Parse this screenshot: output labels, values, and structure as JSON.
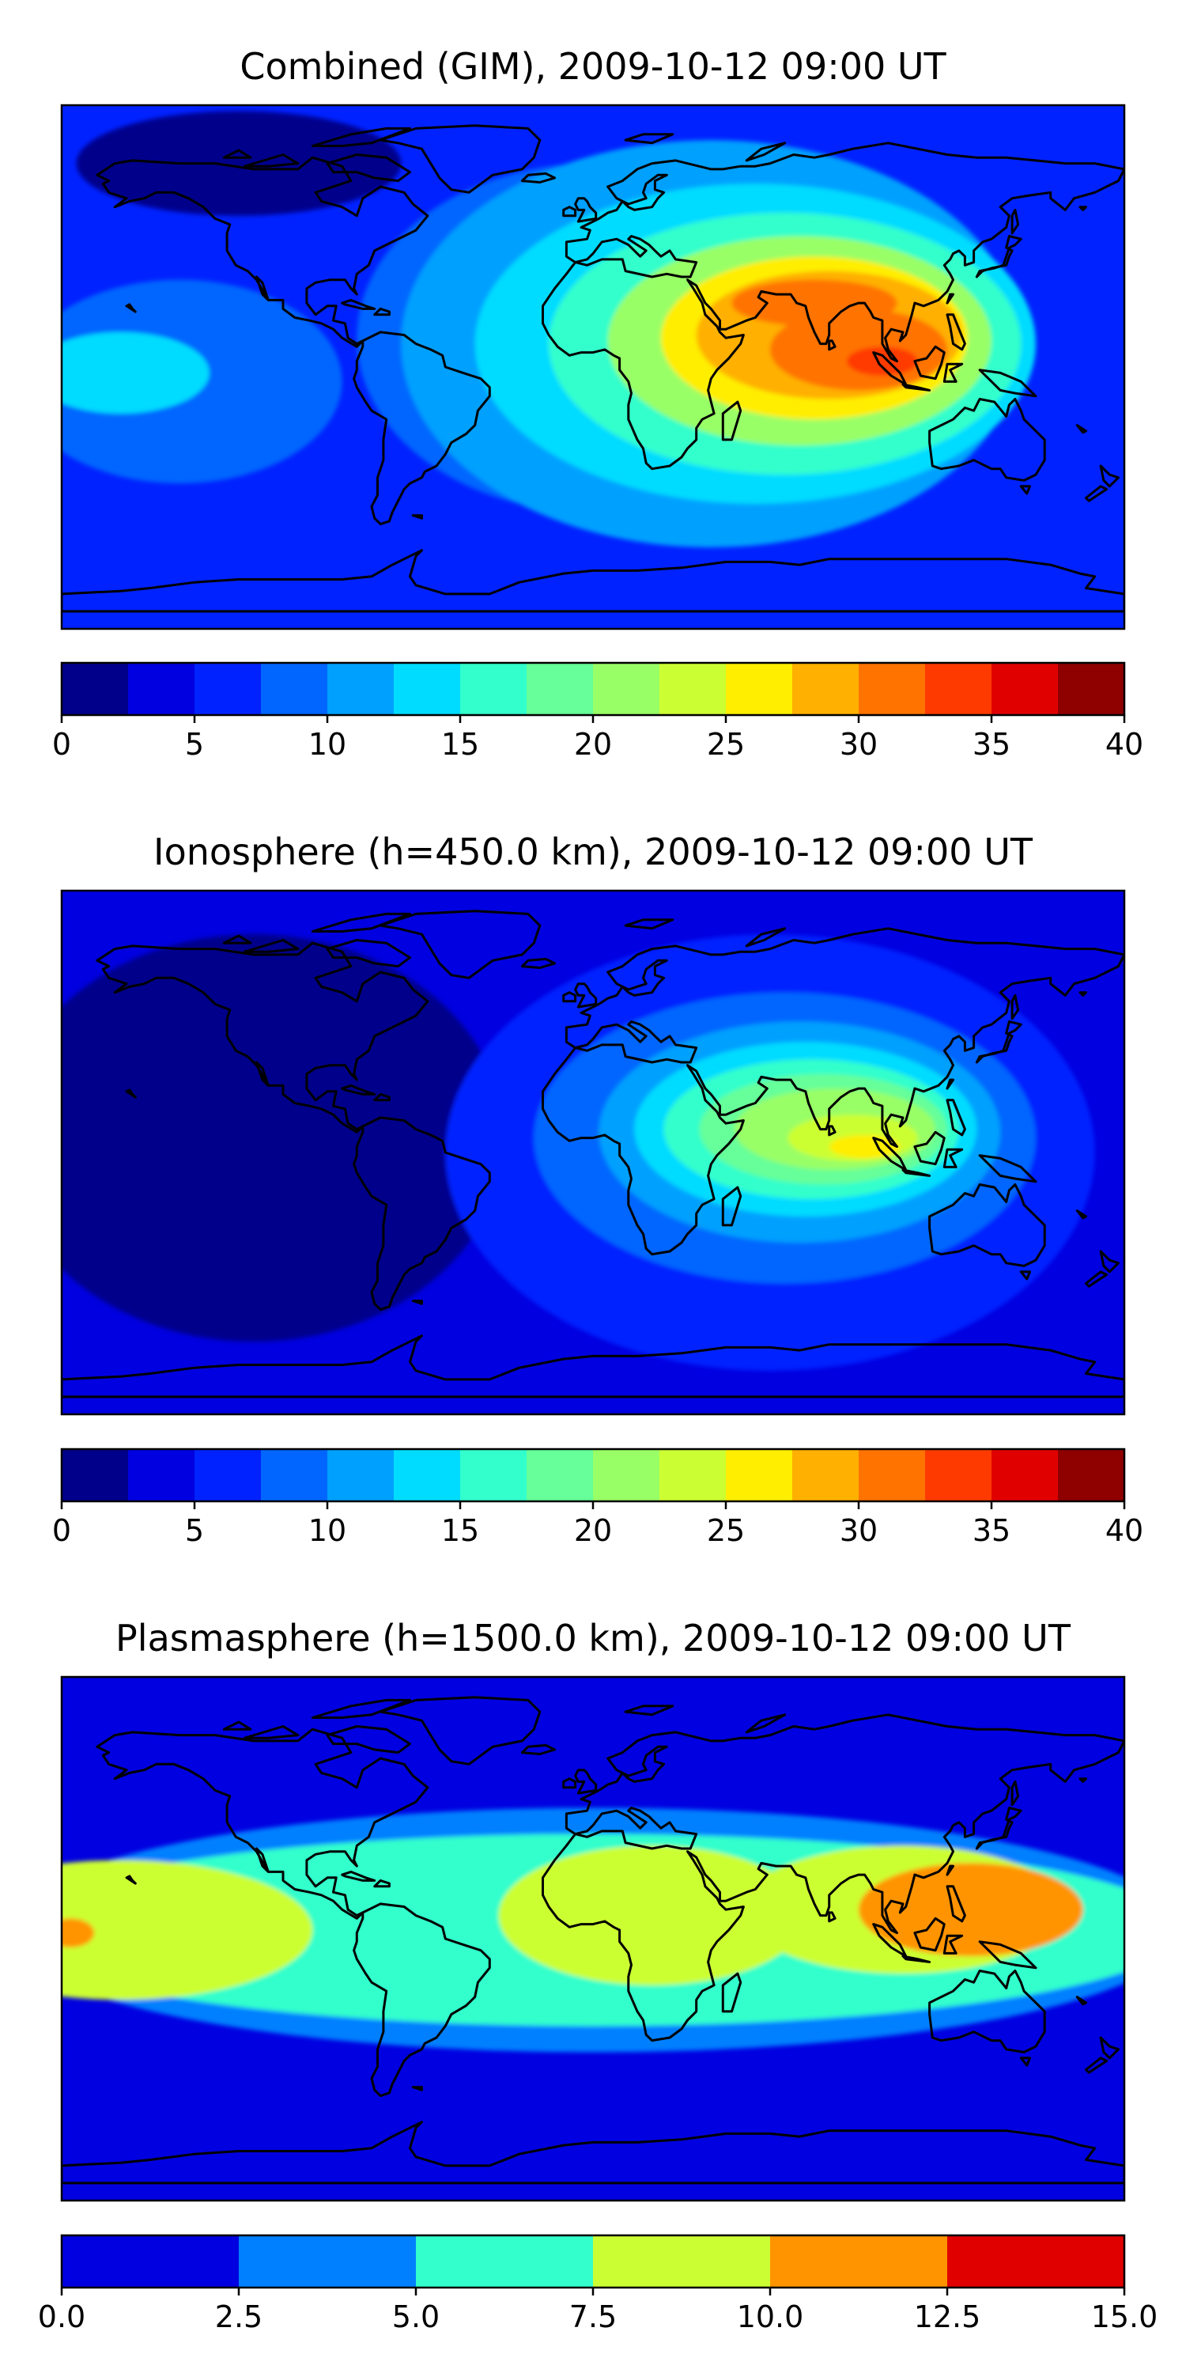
{
  "figure": {
    "panels": [
      {
        "title": "Combined (GIM), 2009-10-12 09:00 UT",
        "colorbar": {
          "colors": [
            "#00008b",
            "#0000e0",
            "#0022ff",
            "#0066ff",
            "#00a0ff",
            "#00dcff",
            "#33ffcc",
            "#66ff99",
            "#99ff66",
            "#ccff33",
            "#ffee00",
            "#ffb000",
            "#ff7300",
            "#ff3a00",
            "#e00000",
            "#8f0000"
          ],
          "ticks": [
            "0",
            "5",
            "10",
            "15",
            "20",
            "25",
            "30",
            "35",
            "40"
          ]
        },
        "field": {
          "background": 2,
          "blobs": [
            {
              "lon": -140,
              "lat": -5,
              "rx": 55,
              "ry": 35,
              "level": 3
            },
            {
              "lon": -160,
              "lat": -2,
              "rx": 30,
              "ry": 14,
              "level": 5
            },
            {
              "lon": 0,
              "lat": 10,
              "rx": 80,
              "ry": 60,
              "level": 3
            },
            {
              "lon": 40,
              "lat": 8,
              "rx": 105,
              "ry": 70,
              "level": 4
            },
            {
              "lon": 55,
              "lat": 8,
              "rx": 95,
              "ry": 55,
              "level": 5
            },
            {
              "lon": 65,
              "lat": 8,
              "rx": 80,
              "ry": 45,
              "level": 6
            },
            {
              "lon": 70,
              "lat": 9,
              "rx": 65,
              "ry": 36,
              "level": 8
            },
            {
              "lon": 75,
              "lat": 10,
              "rx": 52,
              "ry": 28,
              "level": 10
            },
            {
              "lon": 80,
              "lat": 11,
              "rx": 45,
              "ry": 22,
              "level": 11
            },
            {
              "lon": 90,
              "lat": 6,
              "rx": 30,
              "ry": 14,
              "level": 12
            },
            {
              "lon": 98,
              "lat": 2,
              "rx": 12,
              "ry": 5,
              "level": 13
            },
            {
              "lon": 75,
              "lat": 22,
              "rx": 28,
              "ry": 8,
              "level": 12
            },
            {
              "lon": -120,
              "lat": 70,
              "rx": 55,
              "ry": 18,
              "level": 0
            }
          ]
        }
      },
      {
        "title": "Ionosphere  (h=450.0 km), 2009-10-12 09:00 UT",
        "colorbar": {
          "colors": [
            "#00008b",
            "#0000e0",
            "#0022ff",
            "#0066ff",
            "#00a0ff",
            "#00dcff",
            "#33ffcc",
            "#66ff99",
            "#99ff66",
            "#ccff33",
            "#ffee00",
            "#ffb000",
            "#ff7300",
            "#ff3a00",
            "#e00000",
            "#8f0000"
          ],
          "ticks": [
            "0",
            "5",
            "10",
            "15",
            "20",
            "25",
            "30",
            "35",
            "40"
          ]
        },
        "field": {
          "background": 1,
          "blobs": [
            {
              "lon": -115,
              "lat": 5,
              "rx": 85,
              "ry": 70,
              "level": 0
            },
            {
              "lon": 60,
              "lat": 0,
              "rx": 110,
              "ry": 75,
              "level": 2
            },
            {
              "lon": 65,
              "lat": 5,
              "rx": 85,
              "ry": 50,
              "level": 3
            },
            {
              "lon": 70,
              "lat": 7,
              "rx": 68,
              "ry": 38,
              "level": 4
            },
            {
              "lon": 72,
              "lat": 8,
              "rx": 58,
              "ry": 30,
              "level": 5
            },
            {
              "lon": 74,
              "lat": 8,
              "rx": 50,
              "ry": 24,
              "level": 6
            },
            {
              "lon": 78,
              "lat": 8,
              "rx": 42,
              "ry": 19,
              "level": 7
            },
            {
              "lon": 82,
              "lat": 8,
              "rx": 34,
              "ry": 14,
              "level": 8
            },
            {
              "lon": 88,
              "lat": 5,
              "rx": 22,
              "ry": 8,
              "level": 9
            },
            {
              "lon": 92,
              "lat": 2,
              "rx": 12,
              "ry": 4,
              "level": 10
            }
          ]
        }
      },
      {
        "title": "Plasmasphere (h=1500.0 km), 2009-10-12 09:00 UT",
        "colorbar": {
          "colors": [
            "#0000e0",
            "#0080ff",
            "#33ffcc",
            "#ccff33",
            "#ff9400",
            "#e00000"
          ],
          "ticks": [
            "0.0",
            "2.5",
            "5.0",
            "7.5",
            "10.0",
            "12.5",
            "15.0"
          ]
        },
        "field": {
          "background": 0,
          "blobs": [
            {
              "lon": 0,
              "lat": 3,
              "rx": 200,
              "ry": 42,
              "level": 1
            },
            {
              "lon": 0,
              "lat": 3,
              "rx": 200,
              "ry": 33,
              "level": 2
            },
            {
              "lon": -160,
              "lat": 3,
              "rx": 65,
              "ry": 24,
              "level": 3
            },
            {
              "lon": 20,
              "lat": 8,
              "rx": 52,
              "ry": 24,
              "level": 3
            },
            {
              "lon": 105,
              "lat": 10,
              "rx": 55,
              "ry": 22,
              "level": 3
            },
            {
              "lon": 128,
              "lat": 10,
              "rx": 38,
              "ry": 16,
              "level": 4
            },
            {
              "lon": -177,
              "lat": 2,
              "rx": 8,
              "ry": 5,
              "level": 4
            }
          ]
        }
      }
    ],
    "coastline_color": "#000000",
    "frame_color": "#000000"
  }
}
